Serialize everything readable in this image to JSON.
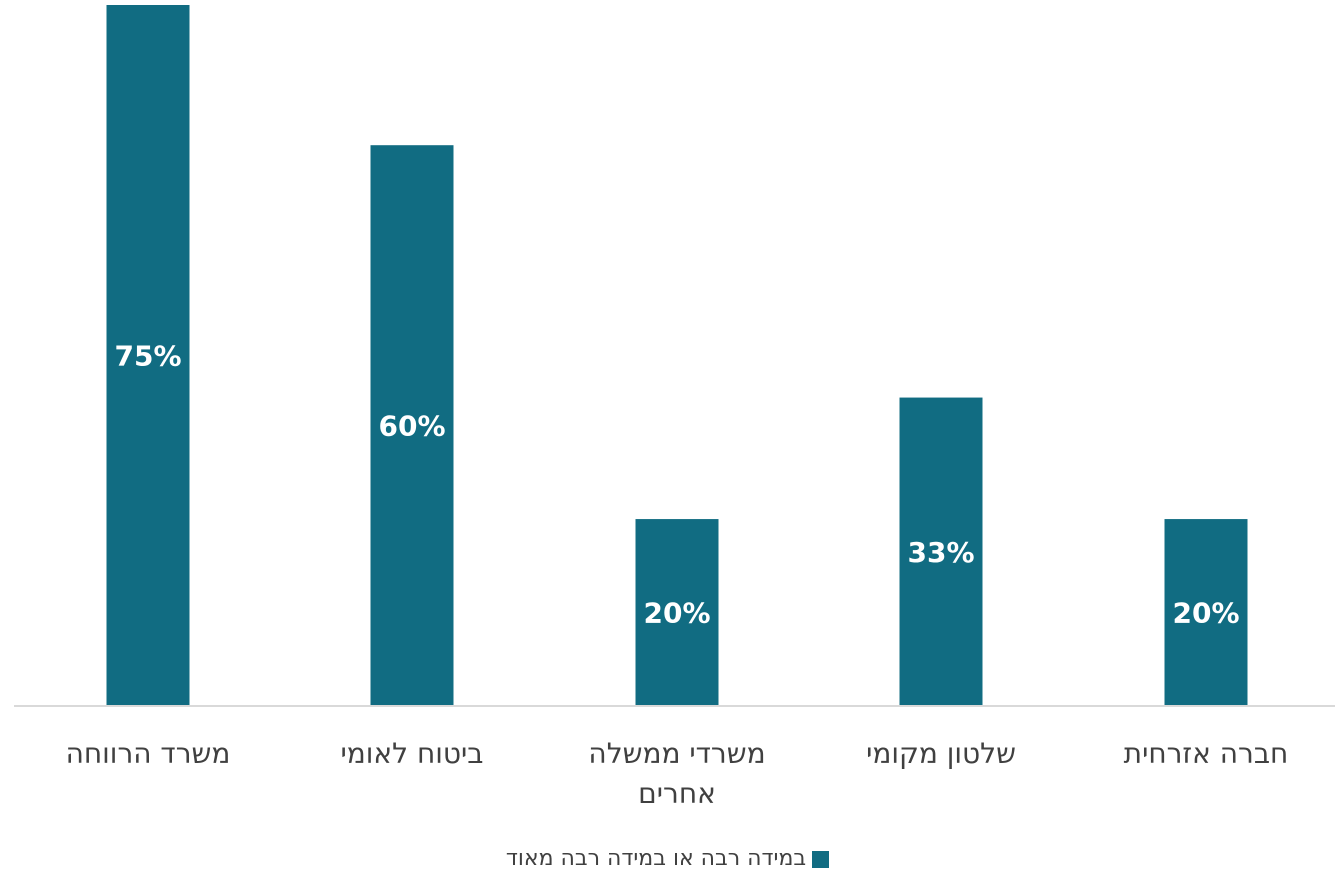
{
  "chart_data": {
    "type": "bar",
    "categories": [
      "משרד הרווחה",
      "ביטוח לאומי",
      "משרדי ממשלה אחרים",
      "שלטון מקומי",
      "חברה אזרחית"
    ],
    "category_lines": [
      [
        "משרד הרווחה"
      ],
      [
        "ביטוח לאומי"
      ],
      [
        "משרדי ממשלה",
        "אחרים"
      ],
      [
        "שלטון מקומי"
      ],
      [
        "חברה אזרחית"
      ]
    ],
    "series": [
      {
        "name": "במידה רבה או במידה רבה מאוד",
        "values": [
          75,
          60,
          20,
          33,
          20
        ]
      }
    ],
    "data_labels": [
      "75%",
      "60%",
      "20%",
      "33%",
      "20%"
    ],
    "ylim": [
      0,
      75
    ],
    "grid": false,
    "legend_position": "bottom",
    "colors": {
      "bar": "#116C82",
      "axis": "#D9D9D9",
      "text": "#404040",
      "label": "#FFFFFF"
    }
  }
}
